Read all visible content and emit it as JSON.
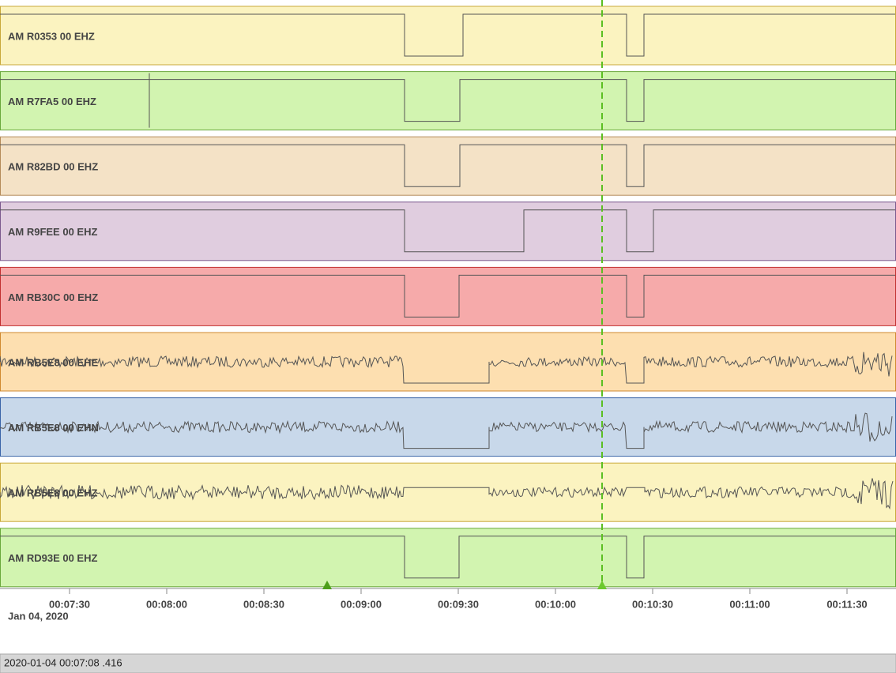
{
  "traces": [
    {
      "label": "AM R0353 00 EHZ"
    },
    {
      "label": "AM R7FA5 00 EHZ"
    },
    {
      "label": "AM R82BD 00 EHZ"
    },
    {
      "label": "AM R9FEE 00 EHZ"
    },
    {
      "label": "AM RB30C 00 EHZ"
    },
    {
      "label": "AM RB5E8 00 EHE"
    },
    {
      "label": "AM RB5E8 00 EHN"
    },
    {
      "label": "AM RB5E8 00 EHZ"
    },
    {
      "label": "AM RD93E 00 EHZ"
    }
  ],
  "time_axis": {
    "ticks": [
      "00:07:30",
      "00:08:00",
      "00:08:30",
      "00:09:00",
      "00:09:30",
      "00:10:00",
      "00:10:30",
      "00:11:00",
      "00:11:30"
    ],
    "date": "Jan 04, 2020"
  },
  "status_bar": {
    "text": "2020-01-04 00:07:08 .416"
  }
}
